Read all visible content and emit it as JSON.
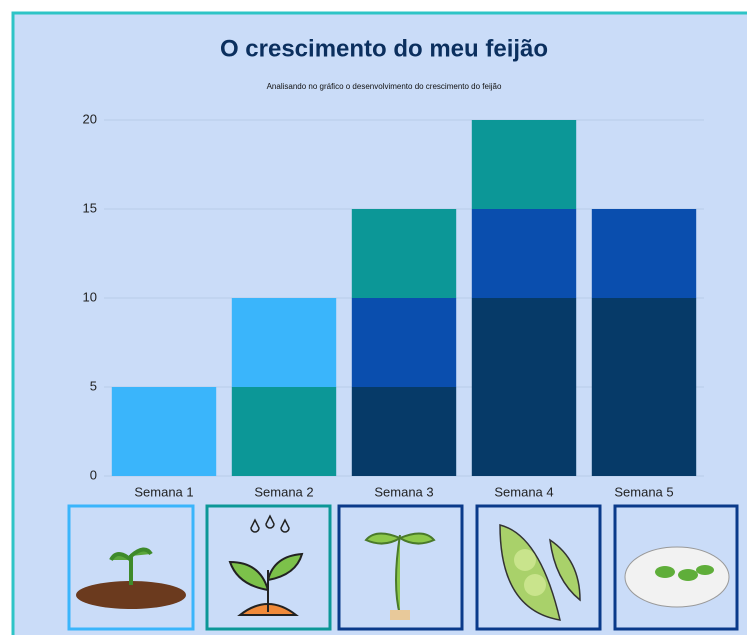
{
  "chart_data": {
    "type": "stacked-bar",
    "title": "O crescimento do meu feijão",
    "subtitle": "Analisando no gráfico o desenvolvimento do crescimento do feijão",
    "categories": [
      "Semana 1",
      "Semana 2",
      "Semana 3",
      "Semana 4",
      "Semana 5"
    ],
    "series": [
      {
        "color": "#063a68",
        "values": [
          null,
          null,
          5,
          10,
          10
        ]
      },
      {
        "color": "#0a4eae",
        "values": [
          null,
          null,
          5,
          5,
          5
        ]
      },
      {
        "color": "#0c9797",
        "values": [
          null,
          5,
          5,
          5,
          null
        ]
      },
      {
        "color": "#3ab5fb",
        "values": [
          5,
          5,
          null,
          null,
          null
        ]
      }
    ],
    "ylim": [
      0,
      20
    ],
    "yticks": [
      0,
      5,
      10,
      15,
      20
    ],
    "grid": true
  }
}
